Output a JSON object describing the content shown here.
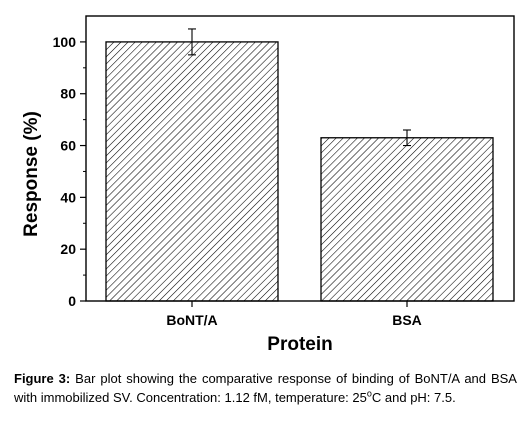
{
  "chart_data": {
    "type": "bar",
    "categories": [
      "BoNT/A",
      "BSA"
    ],
    "values": [
      100,
      63
    ],
    "errors": [
      5,
      3
    ],
    "ylim": [
      0,
      110
    ],
    "yticks": [
      "0",
      "20",
      "40",
      "60",
      "80",
      "100"
    ],
    "ytick_values": [
      0,
      20,
      40,
      60,
      80,
      100
    ],
    "xlabel": "Protein",
    "ylabel": "Response (%)",
    "bar_fill": "hatched",
    "grid": false,
    "legend": "none"
  },
  "caption": {
    "label": "Figure 3:",
    "text_before": " Bar plot showing the comparative response of binding of BoNT/A and BSA with immobilized SV. Concentration: 1.12 fM, temperature: 25",
    "degree": "o",
    "text_after": "C and pH: 7.5."
  },
  "colors": {
    "axis": "#000000",
    "hatch": "#000000",
    "background": "#ffffff"
  }
}
